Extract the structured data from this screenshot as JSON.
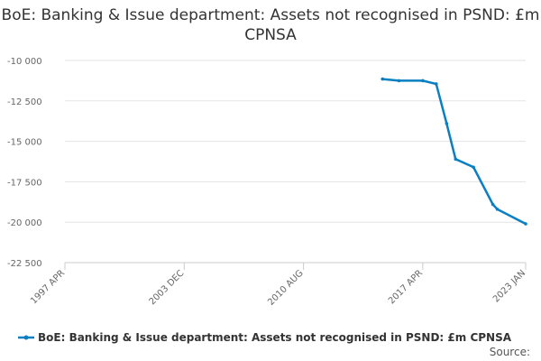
{
  "chart_data": {
    "type": "line",
    "title": "BoE: Banking & Issue department: Assets not recognised in PSND: £m CPNSA",
    "x": [
      "2015 JAN",
      "2015 DEC",
      "2017 APR",
      "2018 JAN",
      "2018 AUG",
      "2019 FEB",
      "2020 FEB",
      "2021 MAR",
      "2021 JUN",
      "2023 JAN"
    ],
    "series": [
      {
        "name": "BoE: Banking & Issue department: Assets not recognised in PSND: £m CPNSA",
        "color": "#0a7fc1",
        "values": [
          -11150,
          -11250,
          -11250,
          -11450,
          -13900,
          -16100,
          -16600,
          -18900,
          -19200,
          -20100
        ]
      }
    ],
    "xlim": [
      "1997 APR",
      "2023 JAN"
    ],
    "xticks": [
      "1997 APR",
      "2003 DEC",
      "2010 AUG",
      "2017 APR",
      "2023 JAN"
    ],
    "ylim": [
      -22500,
      -10000
    ],
    "yticks": [
      {
        "value": -22500,
        "label": "-22 500"
      },
      {
        "value": -20000,
        "label": "-20 000"
      },
      {
        "value": -17500,
        "label": "-17 500"
      },
      {
        "value": -15000,
        "label": "-15 000"
      },
      {
        "value": -12500,
        "label": "-12 500"
      },
      {
        "value": -10000,
        "label": "-10 000"
      }
    ],
    "grid": true,
    "source": "Source:"
  }
}
